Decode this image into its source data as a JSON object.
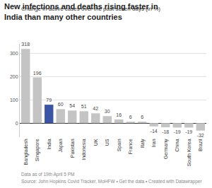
{
  "chart_data": {
    "type": "bar",
    "title": "New infections and deaths rising faster in India than many other countries",
    "subtitle": "Change in active cases over the past seven days (in %)",
    "footer": [
      "Data as of 19th April 5 PM",
      "Source: John Hopkins Covid Tracker, MoHFW • Get the data • Created with Datawrapper"
    ],
    "categories": [
      "Bangladesh",
      "Singapore",
      "India",
      "Japan",
      "Pakistan",
      "Indonesia",
      "UK",
      "US",
      "Spain",
      "France",
      "Italy",
      "Iran",
      "Germany",
      "China",
      "South Korea",
      "Brazil"
    ],
    "values": [
      318,
      196,
      79,
      60,
      54,
      51,
      42,
      30,
      16,
      6,
      6,
      -14,
      -18,
      -19,
      -19,
      -32
    ],
    "colors": [
      "#c4c4c4",
      "#c4c4c4",
      "#3a55a4",
      "#c4c4c4",
      "#c4c4c4",
      "#c4c4c4",
      "#c4c4c4",
      "#c4c4c4",
      "#c4c4c4",
      "#c4c4c4",
      "#c4c4c4",
      "#c4c4c4",
      "#c4c4c4",
      "#c4c4c4",
      "#c4c4c4",
      "#c4c4c4"
    ],
    "ylim": [
      -60,
      340
    ],
    "yticks": [
      0,
      100,
      200,
      300
    ],
    "grid": true,
    "data_labels": true
  }
}
